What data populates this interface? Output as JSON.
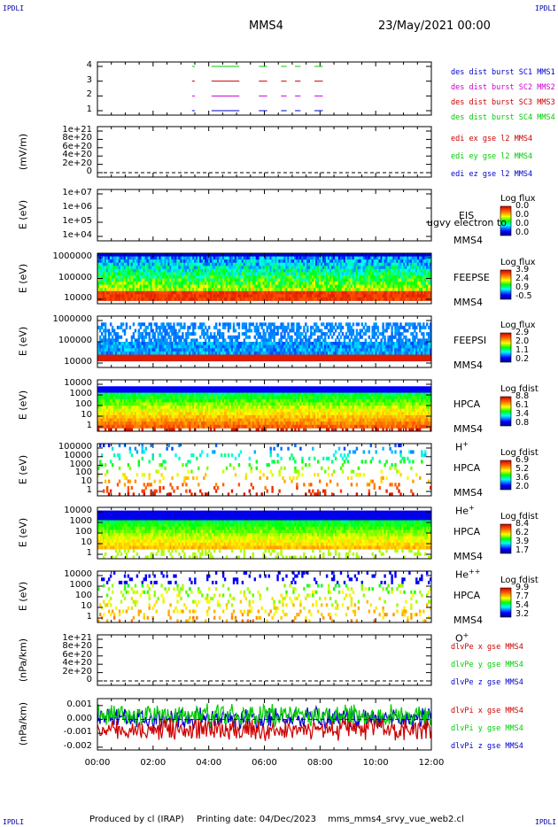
{
  "header": {
    "corner_tl": "IPDLI",
    "corner_tr": "IPDLI",
    "corner_bl": "IPDLI",
    "corner_br": "IPDLI",
    "mission": "MMS4",
    "date": "23/May/2021 00:00"
  },
  "footer": {
    "produced": "Produced by cl (IRAP)",
    "printing": "Printing date: 04/Dec/2023",
    "script": "mms_mms4_srvy_vue_web2.cl"
  },
  "colors": {
    "blue": "#0000cc",
    "magenta": "#cc00cc",
    "red": "#cc0000",
    "green": "#00cc00"
  },
  "chart_data": [
    {
      "type": "line",
      "panel": "burst",
      "yticks": [
        "4",
        "3",
        "2",
        "1"
      ],
      "ylabel": "",
      "xlim": [
        "00:00",
        "12:00"
      ],
      "series": [
        {
          "name": "des dist burst SC1 MMS1",
          "color": "#0000cc",
          "level": 1,
          "segments": [
            [
              3.4,
              3.5
            ],
            [
              4.1,
              5.1
            ],
            [
              5.8,
              6.1
            ],
            [
              6.6,
              6.8
            ],
            [
              7.1,
              7.3
            ],
            [
              7.8,
              8.1
            ]
          ]
        },
        {
          "name": "des dist burst SC2 MMS2",
          "color": "#cc00cc",
          "level": 2,
          "segments": [
            [
              3.4,
              3.5
            ],
            [
              4.1,
              5.1
            ],
            [
              5.8,
              6.1
            ],
            [
              6.6,
              6.8
            ],
            [
              7.1,
              7.3
            ],
            [
              7.8,
              8.1
            ]
          ]
        },
        {
          "name": "des dist burst SC3 MMS3",
          "color": "#cc0000",
          "level": 3,
          "segments": [
            [
              3.4,
              3.5
            ],
            [
              4.1,
              5.1
            ],
            [
              5.8,
              6.1
            ],
            [
              6.6,
              6.8
            ],
            [
              7.1,
              7.3
            ],
            [
              7.8,
              8.1
            ]
          ]
        },
        {
          "name": "des dist burst SC4 MMS4",
          "color": "#00cc00",
          "level": 4,
          "segments": [
            [
              3.4,
              3.5
            ],
            [
              4.1,
              5.1
            ],
            [
              5.8,
              6.1
            ],
            [
              6.6,
              6.8
            ],
            [
              7.1,
              7.3
            ],
            [
              7.8,
              8.1
            ]
          ]
        }
      ]
    },
    {
      "type": "line",
      "panel": "edi",
      "ylabel": "(mV/m)",
      "yticks": [
        "1e+21",
        "8e+20",
        "6e+20",
        "4e+20",
        "2e+20",
        "0"
      ],
      "series": [
        {
          "name": "edi ex gse l2 MMS4",
          "color": "#cc0000",
          "values": []
        },
        {
          "name": "edi ey gse l2 MMS4",
          "color": "#00cc00",
          "values": []
        },
        {
          "name": "edi ez gse l2 MMS4",
          "color": "#0000cc",
          "values": []
        }
      ]
    },
    {
      "type": "heatmap",
      "panel": "eis",
      "ylabel": "E (eV)",
      "yticks": [
        "1e+07",
        "1e+06",
        "1e+05",
        "1e+04"
      ],
      "instrument": "EIS",
      "spacecraft": "MMS4",
      "overlay": "ugvy electron to",
      "colorbar": {
        "title": "Log flux",
        "values": [
          "0.0",
          "0.0",
          "0.0",
          "0.0"
        ]
      }
    },
    {
      "type": "heatmap",
      "panel": "feepse",
      "ylabel": "E (eV)",
      "yticks": [
        "1000000",
        "100000",
        "10000"
      ],
      "instrument": "FEEPSE",
      "spacecraft": "MMS4",
      "colorbar": {
        "title": "Log flux",
        "values": [
          "3.9",
          "2.4",
          "0.9",
          "-0.5"
        ]
      }
    },
    {
      "type": "heatmap",
      "panel": "feepsi",
      "ylabel": "E (eV)",
      "yticks": [
        "1000000",
        "100000",
        "10000"
      ],
      "instrument": "FEEPSI",
      "spacecraft": "MMS4",
      "colorbar": {
        "title": "Log flux",
        "values": [
          "2.9",
          "2.0",
          "1.1",
          "0.2"
        ]
      }
    },
    {
      "type": "heatmap",
      "panel": "hpca_h",
      "ylabel": "E (eV)",
      "yticks": [
        "10000",
        "1000",
        "100",
        "10",
        "1"
      ],
      "instrument": "HPCA",
      "spacecraft": "MMS4",
      "species": "H",
      "charge": "+",
      "colorbar": {
        "title": "Log fdist",
        "values": [
          "8.8",
          "6.1",
          "3.4",
          "0.8"
        ]
      }
    },
    {
      "type": "heatmap",
      "panel": "hpca_he",
      "ylabel": "E (eV)",
      "yticks": [
        "100000",
        "10000",
        "1000",
        "100",
        "10",
        "1"
      ],
      "instrument": "HPCA",
      "spacecraft": "MMS4",
      "species": "He",
      "charge": "+",
      "colorbar": {
        "title": "Log fdist",
        "values": [
          "6.9",
          "5.2",
          "3.6",
          "2.0"
        ]
      }
    },
    {
      "type": "heatmap",
      "panel": "hpca_hepp",
      "ylabel": "E (eV)",
      "yticks": [
        "10000",
        "1000",
        "100",
        "10",
        "1"
      ],
      "instrument": "HPCA",
      "spacecraft": "MMS4",
      "species": "He",
      "charge": "++",
      "colorbar": {
        "title": "Log fdist",
        "values": [
          "8.4",
          "6.2",
          "3.9",
          "1.7"
        ]
      }
    },
    {
      "type": "heatmap",
      "panel": "hpca_o",
      "ylabel": "E (eV)",
      "yticks": [
        "10000",
        "1000",
        "100",
        "10",
        "1"
      ],
      "instrument": "HPCA",
      "spacecraft": "MMS4",
      "species": "O",
      "charge": "+",
      "colorbar": {
        "title": "Log fdist",
        "values": [
          "9.9",
          "7.7",
          "5.4",
          "3.2"
        ]
      }
    },
    {
      "type": "line",
      "panel": "dlvpe",
      "ylabel": "(nPa/km)",
      "yticks": [
        "1e+21",
        "8e+20",
        "6e+20",
        "4e+20",
        "2e+20",
        "0"
      ],
      "series": [
        {
          "name": "dlvPe x gse MMS4",
          "color": "#cc0000",
          "values": []
        },
        {
          "name": "dlvPe y gse MMS4",
          "color": "#00cc00",
          "values": []
        },
        {
          "name": "dlvPe z gse MMS4",
          "color": "#0000cc",
          "values": []
        }
      ]
    },
    {
      "type": "line",
      "panel": "dlvpi",
      "ylabel": "(nPa/km)",
      "yticks": [
        "0.001",
        "0.000",
        "-0.001",
        "-0.002"
      ],
      "ylim": [
        -0.0022,
        0.0015
      ],
      "series": [
        {
          "name": "dlvPi x gse MMS4",
          "color": "#cc0000",
          "mean": -0.0007
        },
        {
          "name": "dlvPi y gse MMS4",
          "color": "#00cc00",
          "mean": 0.0003
        },
        {
          "name": "dlvPi z gse MMS4",
          "color": "#0000cc",
          "mean": 0.0001
        }
      ]
    }
  ],
  "xaxis": {
    "ticks": [
      "00:00",
      "02:00",
      "04:00",
      "06:00",
      "08:00",
      "10:00",
      "12:00"
    ]
  }
}
